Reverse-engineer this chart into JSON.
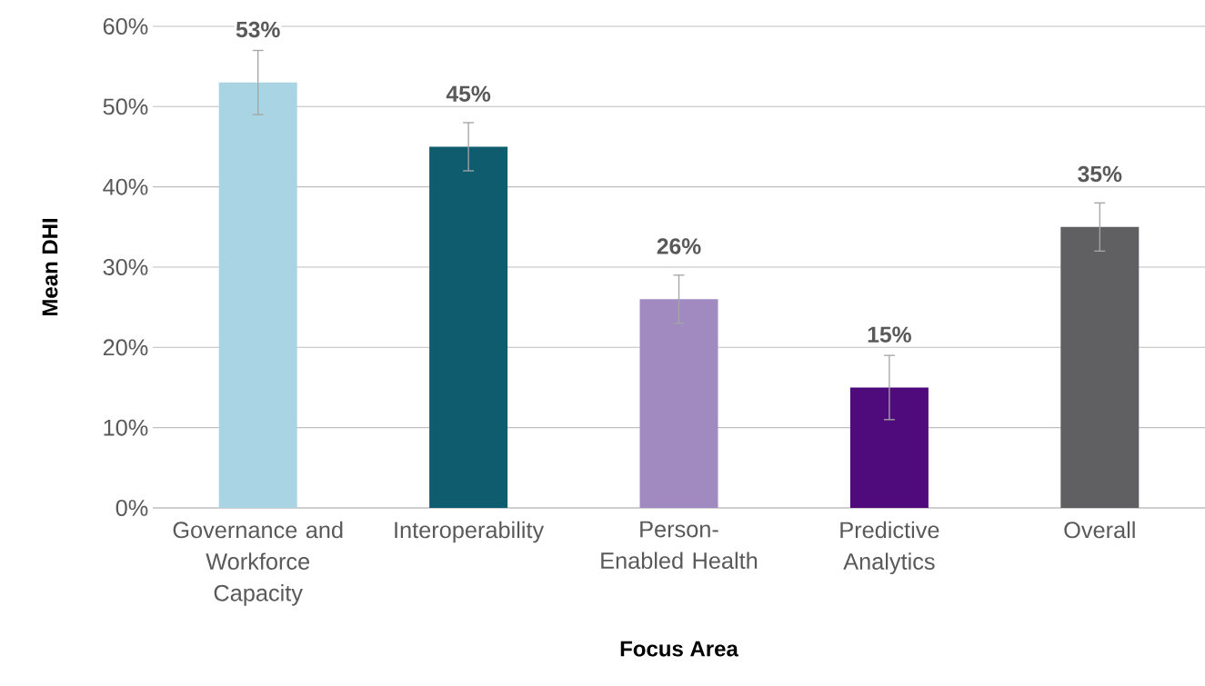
{
  "chart_data": {
    "type": "bar",
    "xlabel": "Focus Area",
    "ylabel": "Mean DHI",
    "categories": [
      "Governance and Workforce Capacity",
      "Interoperability",
      "Person-Enabled Health",
      "Predictive Analytics",
      "Overall"
    ],
    "values": [
      53,
      45,
      26,
      15,
      35
    ],
    "errors": [
      4,
      3,
      3,
      4,
      3
    ],
    "value_labels": [
      "53%",
      "45%",
      "26%",
      "15%",
      "35%"
    ],
    "colors": [
      "#a8d4e3",
      "#0e5c6e",
      "#a08ac0",
      "#4f0b7b",
      "#606062"
    ],
    "ylim": [
      0,
      60
    ],
    "yticks": [
      {
        "value": 0,
        "label": "0%"
      },
      {
        "value": 10,
        "label": "10%"
      },
      {
        "value": 20,
        "label": "20%"
      },
      {
        "value": 30,
        "label": "30%"
      },
      {
        "value": 40,
        "label": "40%"
      },
      {
        "value": 50,
        "label": "50%"
      },
      {
        "value": 60,
        "label": "60%"
      }
    ],
    "grid": "y"
  }
}
